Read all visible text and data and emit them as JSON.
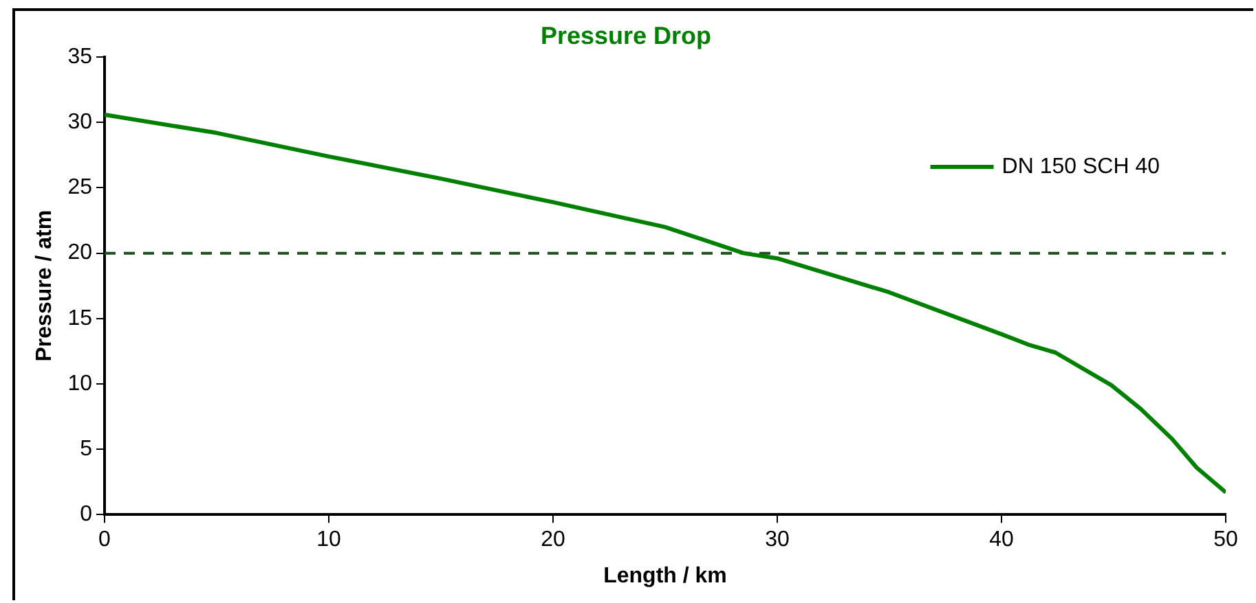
{
  "chart_data": {
    "type": "line",
    "title": "Pressure Drop",
    "xlabel": "Length / km",
    "ylabel": "Pressure / atm",
    "series": [
      {
        "name": "DN 150 SCH 40",
        "color": "#008000",
        "x": [
          0,
          5,
          10,
          15,
          20,
          25,
          28.5,
          30,
          35,
          40,
          41.2,
          42.4,
          44.9,
          46.2,
          47.6,
          48.7,
          50
        ],
        "values": [
          30.6,
          29.2,
          27.4,
          25.7,
          23.9,
          22.0,
          20.0,
          19.6,
          17.0,
          13.8,
          13.0,
          12.4,
          9.9,
          8.1,
          5.8,
          3.6,
          1.7
        ]
      }
    ],
    "xlim": [
      0,
      50
    ],
    "xticks": [
      0,
      10,
      20,
      30,
      40,
      50
    ],
    "ylim": [
      0,
      35
    ],
    "yticks": [
      0,
      5,
      10,
      15,
      20,
      25,
      30,
      35
    ],
    "ref_lines": [
      {
        "axis": "y",
        "value": 20,
        "color": "#1e4d1e",
        "line_style": "dashed"
      }
    ],
    "grid": false,
    "legend": "top right",
    "marker": "none",
    "line_style": "solid"
  }
}
